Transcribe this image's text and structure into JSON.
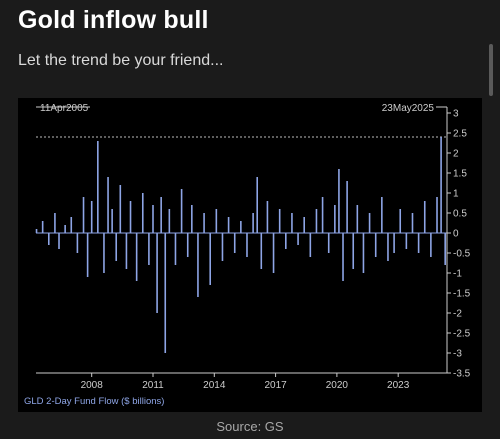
{
  "header": {
    "title": "Gold inflow bull",
    "subtitle": "Let the trend be your friend..."
  },
  "footer": {
    "source": "Source: GS"
  },
  "chart_data": {
    "type": "bar",
    "title": "",
    "series_label": "GLD 2-Day Fund Flow ($ billions)",
    "start_date_label": "11Apr2005",
    "end_date_label": "23May2025",
    "x_tick_labels": [
      "2008",
      "2011",
      "2014",
      "2017",
      "2020",
      "2023"
    ],
    "y_tick_labels": [
      "3",
      "2.5",
      "2",
      "1.5",
      "1",
      "0.5",
      "0",
      "-0.5",
      "-1",
      "-1.5",
      "-2",
      "-2.5",
      "-3",
      "-3.5"
    ],
    "xlim": [
      "2005-04-11",
      "2025-05-23"
    ],
    "ylim": [
      -3.5,
      3
    ],
    "reference_line": 2.4,
    "colors": {
      "bars": "#8ea5e6",
      "axis": "#cccccc",
      "label": "#8ea5e6",
      "ref": "#bbbbbb"
    },
    "grid": false,
    "x": [
      2005.3,
      2005.6,
      2005.9,
      2006.2,
      2006.4,
      2006.7,
      2007.0,
      2007.3,
      2007.6,
      2007.8,
      2008.0,
      2008.3,
      2008.6,
      2008.8,
      2009.0,
      2009.2,
      2009.4,
      2009.7,
      2009.9,
      2010.2,
      2010.5,
      2010.8,
      2011.0,
      2011.2,
      2011.4,
      2011.6,
      2011.8,
      2012.1,
      2012.4,
      2012.7,
      2012.9,
      2013.2,
      2013.5,
      2013.8,
      2014.1,
      2014.4,
      2014.7,
      2015.0,
      2015.3,
      2015.6,
      2015.9,
      2016.1,
      2016.3,
      2016.6,
      2016.9,
      2017.2,
      2017.5,
      2017.8,
      2018.1,
      2018.4,
      2018.7,
      2019.0,
      2019.3,
      2019.6,
      2019.9,
      2020.1,
      2020.3,
      2020.5,
      2020.8,
      2021.0,
      2021.3,
      2021.6,
      2021.9,
      2022.2,
      2022.5,
      2022.8,
      2023.1,
      2023.4,
      2023.7,
      2024.0,
      2024.3,
      2024.6,
      2024.9,
      2025.1,
      2025.3
    ],
    "values": [
      0.1,
      0.3,
      -0.3,
      0.5,
      -0.4,
      0.2,
      0.4,
      -0.5,
      0.9,
      -1.1,
      0.8,
      2.3,
      -1.0,
      1.4,
      0.6,
      -0.7,
      1.2,
      -0.9,
      0.8,
      -1.2,
      1.0,
      -0.8,
      0.7,
      -2.0,
      0.9,
      -3.0,
      0.6,
      -0.8,
      1.1,
      -0.6,
      0.7,
      -1.6,
      0.5,
      -1.3,
      0.6,
      -0.7,
      0.4,
      -0.5,
      0.3,
      -0.6,
      0.5,
      1.4,
      -0.9,
      0.8,
      -1.0,
      0.6,
      -0.4,
      0.5,
      -0.3,
      0.4,
      -0.6,
      0.6,
      0.9,
      -0.5,
      0.7,
      1.6,
      -1.2,
      1.3,
      -0.9,
      0.7,
      -1.0,
      0.5,
      -0.6,
      0.9,
      -0.7,
      -0.5,
      0.6,
      -0.4,
      0.5,
      -0.5,
      0.8,
      -0.6,
      0.9,
      2.4,
      -0.8
    ]
  }
}
